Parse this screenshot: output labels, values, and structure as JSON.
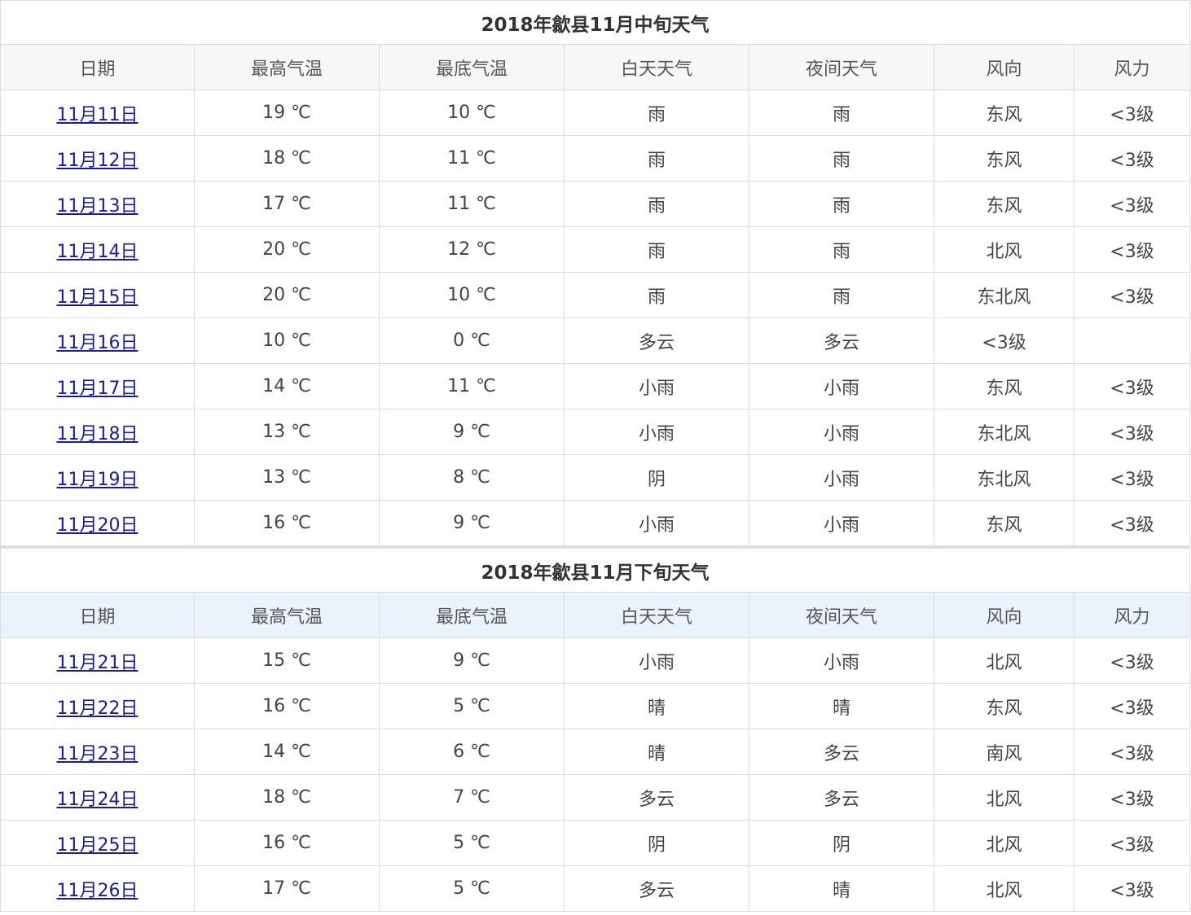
{
  "section1": {
    "title": "2018年歙县11月中旬天气",
    "headers": [
      "日期",
      "最高气温",
      "最底气温",
      "白天天气",
      "夜间天气",
      "风向",
      "风力"
    ],
    "rows": [
      {
        "date": "11月11日",
        "hi": "19 ℃",
        "lo": "10 ℃",
        "day": "雨",
        "night": "雨",
        "dir": "东风",
        "force": "<3级"
      },
      {
        "date": "11月12日",
        "hi": "18 ℃",
        "lo": "11 ℃",
        "day": "雨",
        "night": "雨",
        "dir": "东风",
        "force": "<3级"
      },
      {
        "date": "11月13日",
        "hi": "17 ℃",
        "lo": "11 ℃",
        "day": "雨",
        "night": "雨",
        "dir": "东风",
        "force": "<3级"
      },
      {
        "date": "11月14日",
        "hi": "20 ℃",
        "lo": "12 ℃",
        "day": "雨",
        "night": "雨",
        "dir": "北风",
        "force": "<3级"
      },
      {
        "date": "11月15日",
        "hi": "20 ℃",
        "lo": "10 ℃",
        "day": "雨",
        "night": "雨",
        "dir": "东北风",
        "force": "<3级"
      },
      {
        "date": "11月16日",
        "hi": "10 ℃",
        "lo": "0 ℃",
        "day": "多云",
        "night": "多云",
        "dir": "<3级",
        "force": ""
      },
      {
        "date": "11月17日",
        "hi": "14 ℃",
        "lo": "11 ℃",
        "day": "小雨",
        "night": "小雨",
        "dir": "东风",
        "force": "<3级"
      },
      {
        "date": "11月18日",
        "hi": "13 ℃",
        "lo": "9 ℃",
        "day": "小雨",
        "night": "小雨",
        "dir": "东北风",
        "force": "<3级"
      },
      {
        "date": "11月19日",
        "hi": "13 ℃",
        "lo": "8 ℃",
        "day": "阴",
        "night": "小雨",
        "dir": "东北风",
        "force": "<3级"
      },
      {
        "date": "11月20日",
        "hi": "16 ℃",
        "lo": "9 ℃",
        "day": "小雨",
        "night": "小雨",
        "dir": "东风",
        "force": "<3级"
      }
    ]
  },
  "section2": {
    "title": "2018年歙县11月下旬天气",
    "headers": [
      "日期",
      "最高气温",
      "最底气温",
      "白天天气",
      "夜间天气",
      "风向",
      "风力"
    ],
    "rows": [
      {
        "date": "11月21日",
        "hi": "15 ℃",
        "lo": "9 ℃",
        "day": "小雨",
        "night": "小雨",
        "dir": "北风",
        "force": "<3级"
      },
      {
        "date": "11月22日",
        "hi": "16 ℃",
        "lo": "5 ℃",
        "day": "晴",
        "night": "晴",
        "dir": "东风",
        "force": "<3级"
      },
      {
        "date": "11月23日",
        "hi": "14 ℃",
        "lo": "6 ℃",
        "day": "晴",
        "night": "多云",
        "dir": "南风",
        "force": "<3级"
      },
      {
        "date": "11月24日",
        "hi": "18 ℃",
        "lo": "7 ℃",
        "day": "多云",
        "night": "多云",
        "dir": "北风",
        "force": "<3级"
      },
      {
        "date": "11月25日",
        "hi": "16 ℃",
        "lo": "5 ℃",
        "day": "阴",
        "night": "阴",
        "dir": "北风",
        "force": "<3级"
      },
      {
        "date": "11月26日",
        "hi": "17 ℃",
        "lo": "5 ℃",
        "day": "多云",
        "night": "晴",
        "dir": "北风",
        "force": "<3级"
      }
    ]
  }
}
